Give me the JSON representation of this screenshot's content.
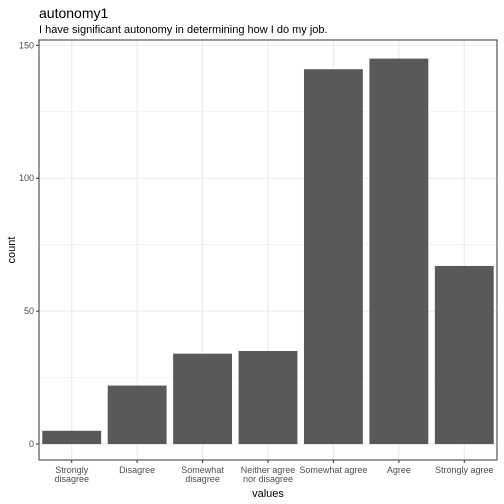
{
  "chart_data": {
    "type": "bar",
    "title": "autonomy1",
    "subtitle": "I have significant autonomy in determining how I do my job.",
    "xlabel": "values",
    "ylabel": "count",
    "categories": [
      [
        "Strongly",
        "disagree"
      ],
      [
        "Disagree"
      ],
      [
        "Somewhat",
        "disagree"
      ],
      [
        "Neither agree",
        "nor disagree"
      ],
      [
        "Somewhat agree"
      ],
      [
        "Agree"
      ],
      [
        "Strongly agree"
      ]
    ],
    "values": [
      5,
      22,
      34,
      35,
      141,
      145,
      67
    ],
    "ylim": [
      -6,
      152
    ],
    "yticks": [
      0,
      50,
      100,
      150
    ],
    "grid": true,
    "bar_color": "#595959",
    "panel_border_color": "#333333",
    "grid_color": "#ebebeb"
  }
}
